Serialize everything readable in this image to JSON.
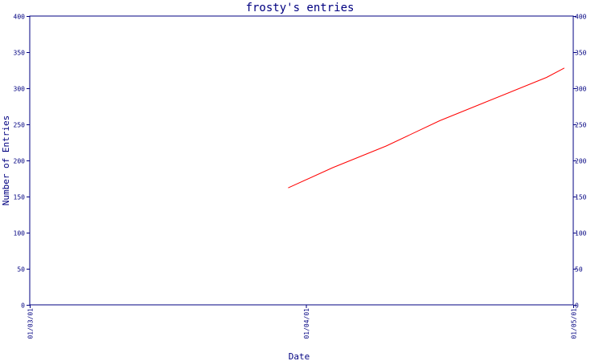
{
  "chart_data": {
    "type": "line",
    "title": "frosty's entries",
    "xlabel": "Date",
    "ylabel": "Number of Entries",
    "x_ticks": [
      "01/03/01",
      "01/04/01",
      "01/05/01"
    ],
    "y_ticks": [
      "0",
      "50",
      "100",
      "150",
      "200",
      "250",
      "300",
      "350",
      "400"
    ],
    "ylim": [
      0,
      400
    ],
    "xlim": [
      "2001-03-01",
      "2001-05-01"
    ],
    "grid": false,
    "right_axis_mirrored": true,
    "series": [
      {
        "color": "#ff0000",
        "points": [
          {
            "x": "2001-03-30",
            "y": 162
          },
          {
            "x": "2001-04-04",
            "y": 190
          },
          {
            "x": "2001-04-10",
            "y": 220
          },
          {
            "x": "2001-04-16",
            "y": 255
          },
          {
            "x": "2001-04-21",
            "y": 280
          },
          {
            "x": "2001-04-28",
            "y": 315
          },
          {
            "x": "2001-04-30",
            "y": 328
          }
        ]
      }
    ],
    "colors": {
      "axis": "#000080",
      "background": "#ffffff"
    }
  }
}
